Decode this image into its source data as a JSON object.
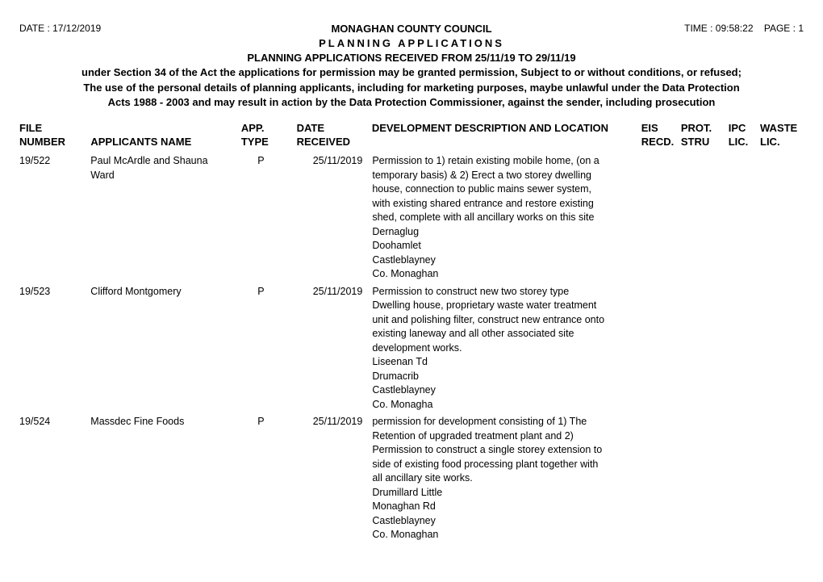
{
  "meta": {
    "date_label": "DATE : ",
    "date_value": "17/12/2019",
    "time_label": "TIME : ",
    "time_value": "09:58:22",
    "page_label": "PAGE : ",
    "page_value": "1"
  },
  "header": {
    "council": "MONAGHAN COUNTY COUNCIL",
    "title": "PLANNING APPLICATIONS",
    "subtitle": "PLANNING APPLICATIONS RECEIVED FROM 25/11/19 TO 29/11/19",
    "note1": "under Section 34 of the Act the applications for permission may be granted permission, Subject to or without conditions, or refused;",
    "note2": "The use of the personal details of planning applicants, including for marketing purposes, maybe unlawful under the Data Protection",
    "note3": "Acts 1988 - 2003 and may result in action by the Data Protection Commissioner, against the sender, including prosecution"
  },
  "columns": {
    "file_l1": "FILE",
    "file_l2": "NUMBER",
    "name": "APPLICANTS NAME",
    "type_l1": "APP.",
    "type_l2": "TYPE",
    "date_l1": "DATE",
    "date_l2": "RECEIVED",
    "desc": "DEVELOPMENT DESCRIPTION AND LOCATION",
    "eis_l1": "EIS",
    "eis_l2": "RECD.",
    "prot_l1": "PROT.",
    "prot_l2": "STRU",
    "ipc_l1": "IPC",
    "ipc_l2": "LIC.",
    "waste_l1": "WASTE",
    "waste_l2": "LIC."
  },
  "rows": [
    {
      "file": "19/522",
      "name": "Paul McArdle and Shauna Ward",
      "type": "P",
      "date": "25/11/2019",
      "desc": [
        "Permission to 1) retain existing mobile home, (on a",
        "temporary basis) & 2) Erect a two storey dwelling",
        "house, connection to public mains sewer system,",
        "with existing shared entrance and restore existing",
        "shed, complete with all ancillary works on this site",
        "Dernaglug",
        "Doohamlet",
        "Castleblayney",
        "Co. Monaghan"
      ]
    },
    {
      "file": "19/523",
      "name": "Clifford  Montgomery",
      "type": "P",
      "date": "25/11/2019",
      "desc": [
        "Permission to construct new two storey type",
        "Dwelling house, proprietary waste water treatment",
        "unit and polishing filter, construct new entrance onto",
        "existing laneway and all other associated site",
        "development works.",
        "Liseenan Td",
        "Drumacrib",
        "Castleblayney",
        "Co. Monagha"
      ]
    },
    {
      "file": "19/524",
      "name": "Massdec Fine Foods",
      "type": "P",
      "date": "25/11/2019",
      "desc": [
        "permission for development consisting of 1) The",
        "Retention of upgraded treatment plant and 2)",
        "Permission to construct a single storey extension to",
        "side of existing food processing plant together with",
        "all ancillary site works.",
        "Drumillard Little",
        "Monaghan Rd",
        "Castleblayney",
        "Co. Monaghan"
      ]
    }
  ]
}
